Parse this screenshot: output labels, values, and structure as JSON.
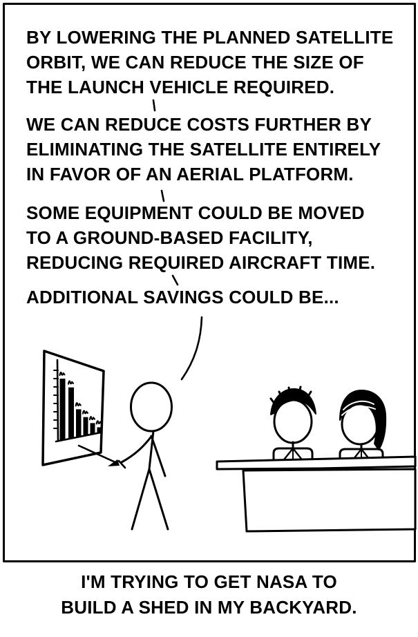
{
  "dialogue": [
    {
      "lines": [
        "BY LOWERING THE PLANNED SATELLITE",
        "ORBIT, WE CAN REDUCE THE SIZE OF",
        "THE LAUNCH VEHICLE REQUIRED."
      ]
    },
    {
      "lines": [
        "WE CAN REDUCE COSTS FURTHER BY",
        "ELIMINATING THE SATELLITE ENTIRELY",
        "IN FAVOR OF AN AERIAL PLATFORM."
      ]
    },
    {
      "lines": [
        "SOME EQUIPMENT COULD BE MOVED",
        "TO A GROUND-BASED FACILITY,",
        "REDUCING REQUIRED AIRCRAFT TIME."
      ]
    },
    {
      "lines": [
        "ADDITIONAL SAVINGS COULD BE..."
      ]
    }
  ],
  "caption_lines": [
    "I'M TRYING TO GET NASA TO",
    "BUILD A SHED IN MY BACKYARD."
  ],
  "colors": {
    "ink": "#000000",
    "background": "#ffffff"
  },
  "chart_data": {
    "type": "bar",
    "description": "tiny cost-reduction bar chart on presenter's poster, labels are illegible squiggles",
    "values_relative": [
      100,
      83,
      45,
      30,
      18,
      9
    ],
    "categories": [
      "",
      "",
      "",
      "",
      "",
      ""
    ],
    "y_ticks": 8,
    "grid": false,
    "legend": false
  }
}
